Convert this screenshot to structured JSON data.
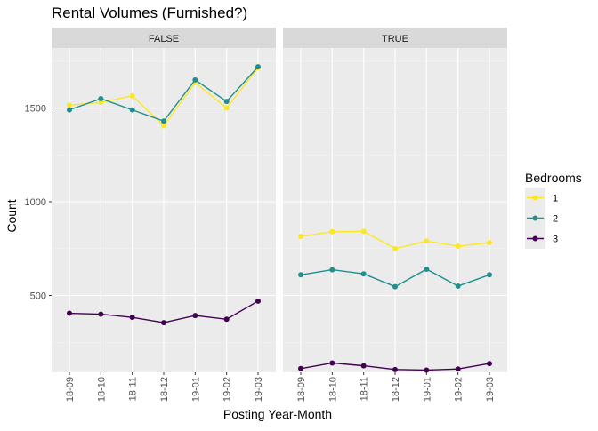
{
  "chart_data": {
    "type": "line",
    "title": "Rental Volumes (Furnished?)",
    "xlabel": "Posting Year-Month",
    "ylabel": "Count",
    "categories": [
      "18-09",
      "18-10",
      "18-11",
      "18-12",
      "19-01",
      "19-02",
      "19-03"
    ],
    "ylim": [
      90,
      1820
    ],
    "yticks": [
      500,
      1000,
      1500
    ],
    "grid": true,
    "legend": {
      "title": "Bedrooms",
      "placement": "right",
      "entries": [
        {
          "label": "1",
          "color": "#FDE725"
        },
        {
          "label": "2",
          "color": "#21908C"
        },
        {
          "label": "3",
          "color": "#440154"
        }
      ]
    },
    "panels": [
      {
        "label": "FALSE",
        "series": [
          {
            "name": "1",
            "color": "#FDE725",
            "values": [
              1515,
              1530,
              1565,
              1405,
              1635,
              1500,
              1715
            ]
          },
          {
            "name": "2",
            "color": "#21908C",
            "values": [
              1490,
              1550,
              1490,
              1430,
              1650,
              1535,
              1720
            ]
          },
          {
            "name": "3",
            "color": "#440154",
            "values": [
              405,
              400,
              383,
              355,
              393,
              373,
              470
            ]
          }
        ]
      },
      {
        "label": "TRUE",
        "series": [
          {
            "name": "1",
            "color": "#FDE725",
            "values": [
              815,
              840,
              842,
              750,
              790,
              763,
              782
            ]
          },
          {
            "name": "2",
            "color": "#21908C",
            "values": [
              610,
              637,
              615,
              547,
              640,
              550,
              610
            ]
          },
          {
            "name": "3",
            "color": "#440154",
            "values": [
              110,
              140,
              125,
              105,
              102,
              108,
              137
            ]
          }
        ]
      }
    ]
  }
}
